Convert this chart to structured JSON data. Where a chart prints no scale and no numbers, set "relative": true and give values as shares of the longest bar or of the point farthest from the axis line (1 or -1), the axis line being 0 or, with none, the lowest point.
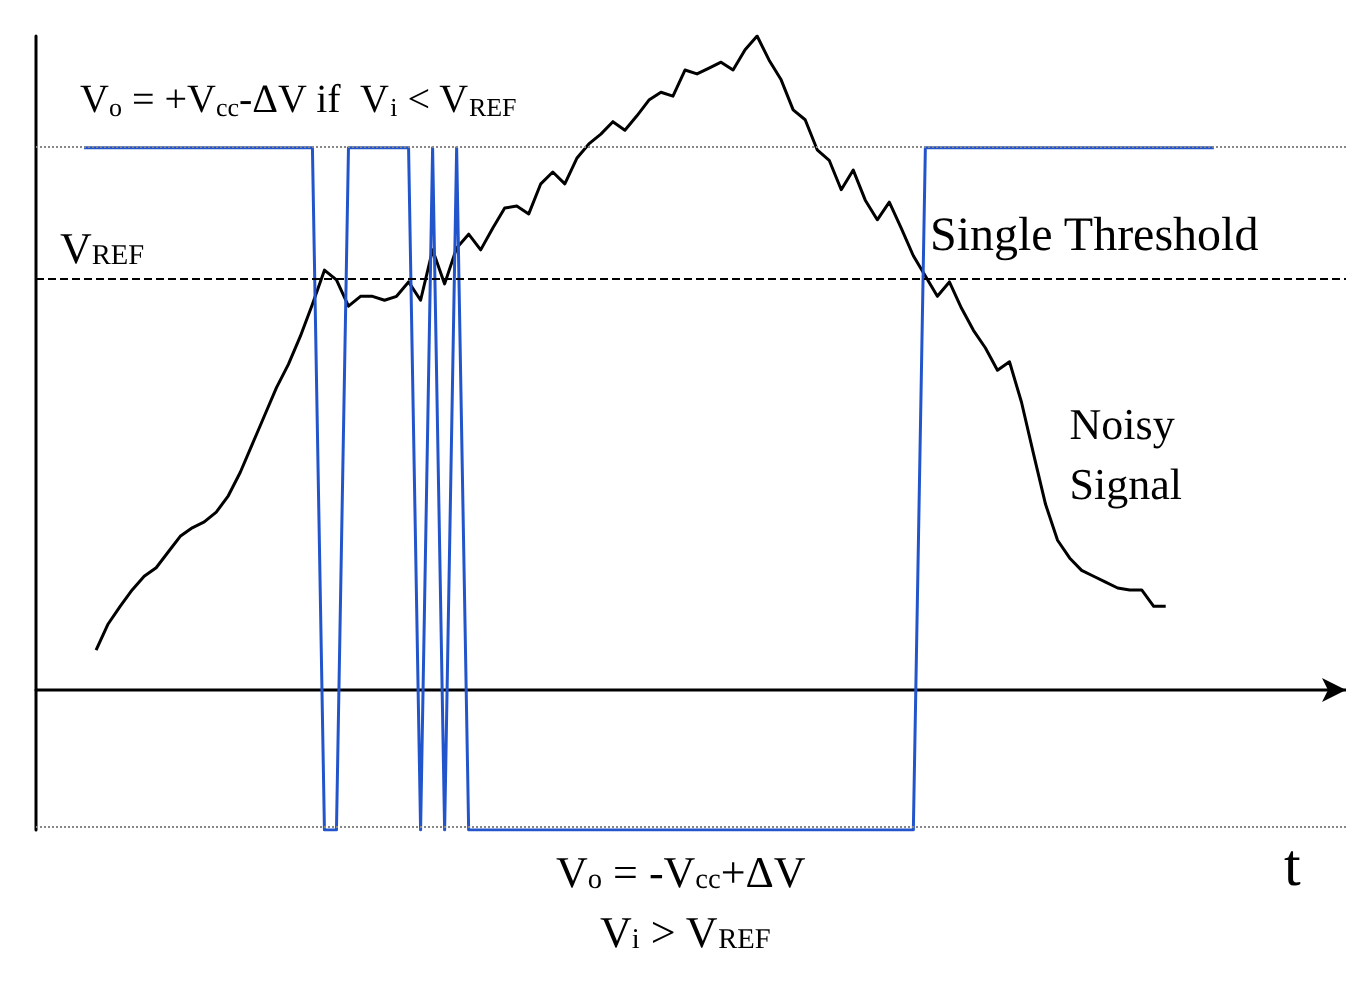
{
  "chart_data": {
    "type": "line",
    "relative": true,
    "xlabel": "t",
    "tick_labels": false,
    "marker": "none",
    "categories": [
      null,
      null,
      null,
      null,
      null,
      null,
      null,
      null,
      null,
      null,
      null,
      null,
      null,
      null,
      null,
      null,
      null,
      null,
      null,
      null,
      null,
      null,
      null,
      null,
      null,
      null,
      null,
      null,
      null,
      null,
      null,
      null,
      null,
      null,
      null,
      null,
      null,
      null,
      null,
      null,
      null,
      null,
      null,
      null,
      null,
      null,
      null,
      null,
      null,
      null,
      null,
      null,
      null,
      null,
      null,
      null,
      null,
      null,
      null,
      null,
      null,
      null,
      null,
      null,
      null,
      null,
      null,
      null,
      null,
      null,
      null,
      null,
      null,
      null,
      null,
      null,
      null,
      null,
      null,
      null,
      null,
      null,
      null,
      null,
      null,
      null,
      null,
      null,
      null,
      null,
      null,
      null,
      null,
      null,
      null,
      null,
      null,
      null,
      null,
      null,
      null,
      null,
      null,
      null,
      null,
      null,
      null,
      null,
      null,
      null
    ],
    "annotations": [
      "V$_{o}$ = +V$_{cc}$-ΔV if  V$_{i}$ < V$_{REF}$",
      "Single Threshold",
      "V$_{o}$ = -V$_{cc}$+ΔV",
      "V$_{i}$ > V$_{REF}$"
    ],
    "ref_lines": [
      {
        "axis": "y",
        "value": 0.627,
        "label": "V$_{REF}$",
        "line_style": "dashed",
        "color": "#000000"
      },
      {
        "axis": "y",
        "value": 0.829,
        "label": null,
        "line_style": "dotted",
        "color": "#888888"
      },
      {
        "axis": "y",
        "value": -0.214,
        "label": null,
        "line_style": "dotted",
        "color": "#888888"
      }
    ],
    "series": [
      {
        "name": "Noisy Signal",
        "color": "#000000",
        "values": [
          null,
          null,
          null,
          null,
          null,
          0.061,
          0.101,
          0.128,
          0.153,
          0.174,
          0.187,
          0.211,
          0.235,
          0.248,
          0.257,
          0.272,
          0.297,
          0.333,
          0.376,
          0.419,
          0.462,
          0.498,
          0.541,
          0.59,
          0.642,
          0.627,
          0.587,
          0.602,
          0.602,
          0.596,
          0.602,
          0.624,
          0.596,
          0.673,
          0.621,
          0.676,
          0.697,
          0.673,
          0.706,
          0.737,
          0.74,
          0.728,
          0.774,
          0.792,
          0.774,
          0.813,
          0.835,
          0.85,
          0.869,
          0.856,
          0.878,
          0.902,
          0.914,
          0.908,
          0.948,
          0.942,
          0.951,
          0.96,
          0.948,
          0.979,
          1,
          0.963,
          0.933,
          0.887,
          0.872,
          0.826,
          0.81,
          0.765,
          0.795,
          0.749,
          0.719,
          0.746,
          0.706,
          0.664,
          0.633,
          0.602,
          0.624,
          0.584,
          0.55,
          0.523,
          0.489,
          0.502,
          0.44,
          0.361,
          0.284,
          0.229,
          0.202,
          0.183,
          0.174,
          0.165,
          0.156,
          0.153,
          0.153,
          0.128,
          0.128,
          null,
          null,
          null,
          null,
          null,
          null,
          null,
          null,
          null,
          null,
          null,
          null,
          null,
          null,
          null
        ]
      },
      {
        "color": "#2255cc",
        "values": [
          null,
          null,
          null,
          null,
          0.829,
          0.829,
          0.829,
          0.829,
          0.829,
          0.829,
          0.829,
          0.829,
          0.829,
          0.829,
          0.829,
          0.829,
          0.829,
          0.829,
          0.829,
          0.829,
          0.829,
          0.829,
          0.829,
          0.829,
          -0.214,
          -0.214,
          0.829,
          0.829,
          0.829,
          0.829,
          0.829,
          0.829,
          -0.214,
          0.829,
          -0.214,
          0.829,
          -0.214,
          -0.214,
          -0.214,
          -0.214,
          -0.214,
          -0.214,
          -0.214,
          -0.214,
          -0.214,
          -0.214,
          -0.214,
          -0.214,
          -0.214,
          -0.214,
          -0.214,
          -0.214,
          -0.214,
          -0.214,
          -0.214,
          -0.214,
          -0.214,
          -0.214,
          -0.214,
          -0.214,
          -0.214,
          -0.214,
          -0.214,
          -0.214,
          -0.214,
          -0.214,
          -0.214,
          -0.214,
          -0.214,
          -0.214,
          -0.214,
          -0.214,
          -0.214,
          -0.214,
          0.829,
          0.829,
          0.829,
          0.829,
          0.829,
          0.829,
          0.829,
          0.829,
          0.829,
          0.829,
          0.829,
          0.829,
          0.829,
          0.829,
          0.829,
          0.829,
          0.829,
          0.829,
          0.829,
          0.829,
          0.829,
          0.829,
          0.829,
          0.829,
          0.829,
          null,
          null,
          null,
          null,
          null,
          null,
          null,
          null,
          null,
          null,
          null
        ]
      }
    ]
  }
}
